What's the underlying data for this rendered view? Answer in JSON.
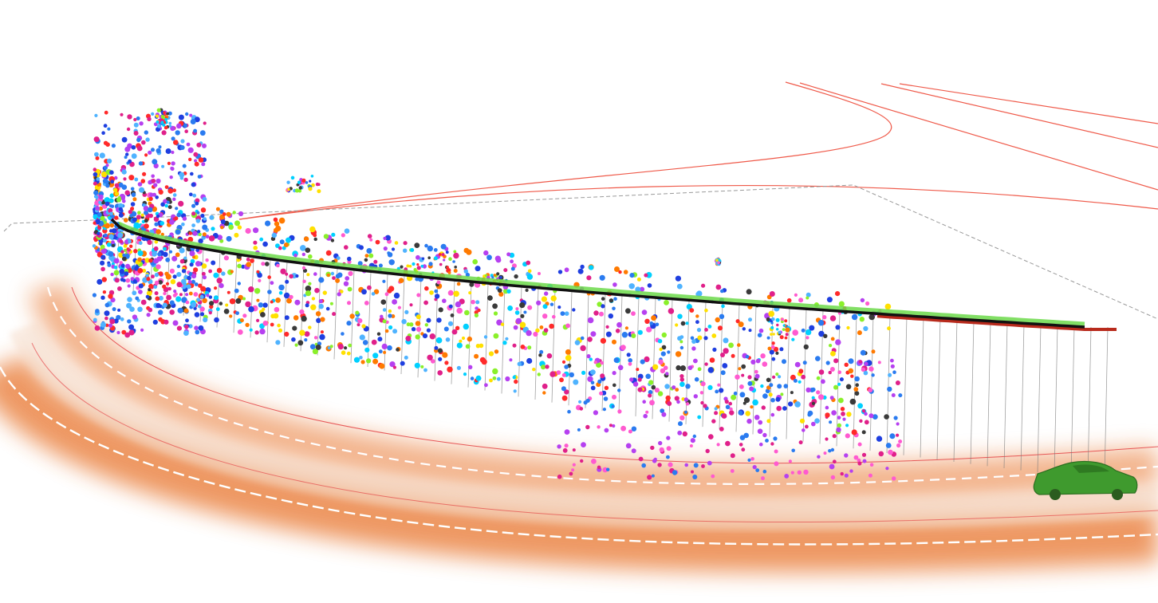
{
  "scene": {
    "background": "#ffffff",
    "colors": {
      "road_glow": "#e8762f",
      "lane_marking": "#ffffff",
      "road_edge": "#e2363a",
      "map_lines": "#ef5a4a",
      "ground_grid": "#9a9a9a",
      "trajectory_black": "#111111",
      "trajectory_green": "#6cd94a",
      "trajectory_red": "#b82a1c",
      "stems": "#7a7a7a",
      "vehicle": "#3f9a2e"
    },
    "point_palette": [
      "#1f3fe0",
      "#2a7bf0",
      "#4fb3ff",
      "#e0208a",
      "#b640f0",
      "#ff2a2a",
      "#ffe000",
      "#8af02a",
      "#3a3a3a",
      "#00d0ff",
      "#ff5ad0",
      "#ff7a00"
    ],
    "icons": {
      "vehicle": "car-icon"
    }
  }
}
